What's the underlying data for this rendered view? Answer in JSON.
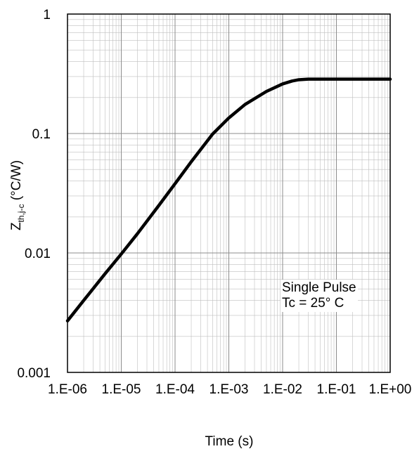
{
  "chart_data": {
    "type": "line",
    "x_scale": "log",
    "y_scale": "log",
    "xlim": [
      1e-06,
      1
    ],
    "ylim": [
      0.001,
      1
    ],
    "grid": true,
    "minor_grid": true,
    "legend": "none",
    "xlabel": "Time (s)",
    "ylabel_main": "Z",
    "ylabel_sub": "th,j-c",
    "ylabel_unit": " (°C/W)",
    "x_ticks": [
      1e-06,
      1e-05,
      0.0001,
      0.001,
      0.01,
      0.1,
      1
    ],
    "x_tick_labels": [
      "1.E-06",
      "1.E-05",
      "1.E-04",
      "1.E-03",
      "1.E-02",
      "1.E-01",
      "1.E+00"
    ],
    "y_ticks": [
      0.001,
      0.01,
      0.1,
      1
    ],
    "y_tick_labels": [
      "0.001",
      "0.01",
      "0.1",
      "1"
    ],
    "annotation": [
      "Single Pulse",
      "Tc = 25° C"
    ],
    "line_color": "#000000",
    "grid_color": "#bfbfbf",
    "series": [
      {
        "x": [
          1e-06,
          2e-06,
          5e-06,
          1e-05,
          2e-05,
          5e-05,
          0.0001,
          0.0002,
          0.0005,
          0.001,
          0.002,
          0.005,
          0.01,
          0.015,
          0.02,
          0.03,
          0.05,
          0.1,
          1
        ],
        "y": [
          0.0027,
          0.004,
          0.0067,
          0.0098,
          0.0145,
          0.025,
          0.038,
          0.058,
          0.099,
          0.135,
          0.175,
          0.225,
          0.26,
          0.275,
          0.282,
          0.285,
          0.285,
          0.285,
          0.285
        ]
      }
    ]
  }
}
